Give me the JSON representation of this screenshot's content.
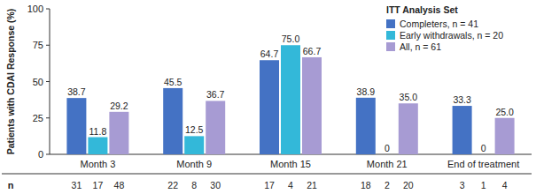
{
  "chart_data": {
    "type": "bar",
    "y_label": "Patients with CDAI Response (%)",
    "legend_title": "ITT Analysis Set",
    "legend": "top-right",
    "categories": [
      "Month 3",
      "Month 9",
      "Month 15",
      "Month 21",
      "End of treatment"
    ],
    "series": [
      {
        "name": "Completers, n = 41",
        "color": "#4472c4",
        "values": [
          38.7,
          45.5,
          64.7,
          38.9,
          33.3
        ],
        "value_labels": [
          "38.7",
          "45.5",
          "64.7",
          "38.9",
          "33.3"
        ],
        "n": [
          31,
          22,
          17,
          18,
          3
        ]
      },
      {
        "name": "Early withdrawals, n = 20",
        "color": "#33b8d9",
        "values": [
          11.8,
          12.5,
          75,
          0,
          0
        ],
        "value_labels": [
          "11.8",
          "12.5",
          "75.0",
          "0",
          "0"
        ],
        "n": [
          17,
          8,
          4,
          2,
          1
        ]
      },
      {
        "name": "All, n = 61",
        "color": "#a79bd3",
        "values": [
          29.2,
          36.7,
          66.7,
          35,
          25
        ],
        "value_labels": [
          "29.2",
          "36.7",
          "66.7",
          "35.0",
          "25.0"
        ],
        "n": [
          48,
          30,
          21,
          20,
          4
        ]
      }
    ],
    "n_label": "n",
    "ylim": [
      0,
      100
    ],
    "yticks": [
      0,
      25,
      50,
      75,
      100
    ],
    "grid": false,
    "data_labels": true
  }
}
